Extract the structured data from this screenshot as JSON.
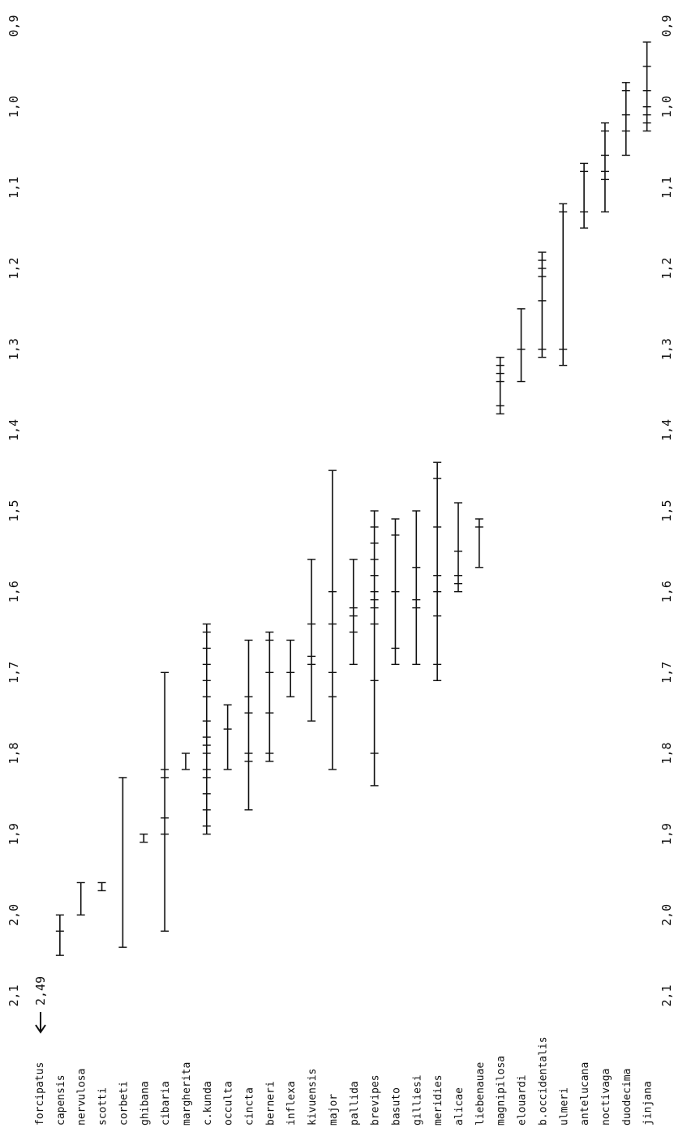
{
  "chart_data": {
    "type": "range",
    "orientation": "rotated",
    "ticks": [
      "0,9",
      "1,0",
      "1,1",
      "1,2",
      "1,3",
      "1,4",
      "1,5",
      "1,6",
      "1,7",
      "1,8",
      "1,9",
      "2,0",
      "2,1"
    ],
    "tick_values": [
      0.9,
      1.0,
      1.1,
      1.2,
      1.3,
      1.4,
      1.5,
      1.6,
      1.7,
      1.8,
      1.9,
      2.0,
      2.1
    ],
    "axis_range": [
      0.88,
      2.12
    ],
    "annotation": {
      "text": "2,49",
      "species": "forcipatus"
    },
    "species": [
      {
        "name": "forcipatus",
        "values": []
      },
      {
        "name": "capensis",
        "values": [
          2.0,
          2.02,
          2.05
        ]
      },
      {
        "name": "nervulosa",
        "values": [
          1.96,
          2.0
        ]
      },
      {
        "name": "scotti",
        "values": [
          1.96,
          1.97
        ]
      },
      {
        "name": "corbeti",
        "values": [
          1.83,
          2.04
        ]
      },
      {
        "name": "ghibana",
        "values": [
          1.9,
          1.91
        ]
      },
      {
        "name": "cibaria",
        "values": [
          1.7,
          1.82,
          1.83,
          1.88,
          1.9,
          2.02
        ]
      },
      {
        "name": "margherita",
        "values": [
          1.8,
          1.82
        ]
      },
      {
        "name": "c.kunda",
        "values": [
          1.64,
          1.65,
          1.67,
          1.69,
          1.71,
          1.73,
          1.76,
          1.78,
          1.79,
          1.8,
          1.82,
          1.83,
          1.85,
          1.87,
          1.89,
          1.9
        ]
      },
      {
        "name": "occulta",
        "values": [
          1.74,
          1.77,
          1.82
        ]
      },
      {
        "name": "cincta",
        "values": [
          1.66,
          1.73,
          1.75,
          1.8,
          1.81,
          1.87
        ]
      },
      {
        "name": "berneri",
        "values": [
          1.65,
          1.66,
          1.7,
          1.75,
          1.8,
          1.81
        ]
      },
      {
        "name": "inflexa",
        "values": [
          1.66,
          1.7,
          1.73
        ]
      },
      {
        "name": "kivuensis",
        "values": [
          1.56,
          1.64,
          1.68,
          1.69,
          1.76
        ]
      },
      {
        "name": "major",
        "values": [
          1.45,
          1.6,
          1.64,
          1.7,
          1.73,
          1.82
        ]
      },
      {
        "name": "pallida",
        "values": [
          1.56,
          1.62,
          1.63,
          1.65,
          1.69
        ]
      },
      {
        "name": "brevipes",
        "values": [
          1.5,
          1.52,
          1.54,
          1.56,
          1.58,
          1.6,
          1.61,
          1.62,
          1.64,
          1.71,
          1.8,
          1.84
        ]
      },
      {
        "name": "basuto",
        "values": [
          1.51,
          1.53,
          1.6,
          1.67,
          1.69
        ]
      },
      {
        "name": "gilliesi",
        "values": [
          1.5,
          1.57,
          1.61,
          1.62,
          1.69
        ]
      },
      {
        "name": "meridies",
        "values": [
          1.44,
          1.46,
          1.52,
          1.58,
          1.6,
          1.63,
          1.69,
          1.71
        ]
      },
      {
        "name": "alicae",
        "values": [
          1.49,
          1.55,
          1.58,
          1.59,
          1.6
        ]
      },
      {
        "name": "liebenauae",
        "values": [
          1.51,
          1.52,
          1.57
        ]
      },
      {
        "name": "magnipilosa",
        "values": [
          1.31,
          1.32,
          1.33,
          1.34,
          1.37,
          1.38
        ]
      },
      {
        "name": "elouardi",
        "values": [
          1.25,
          1.3,
          1.34
        ]
      },
      {
        "name": "b.occidentalis",
        "values": [
          1.18,
          1.19,
          1.2,
          1.21,
          1.24,
          1.3,
          1.31
        ]
      },
      {
        "name": "ulmeri",
        "values": [
          1.12,
          1.13,
          1.3,
          1.32
        ]
      },
      {
        "name": "antelucana",
        "values": [
          1.07,
          1.08,
          1.13,
          1.15
        ]
      },
      {
        "name": "noctivaga",
        "values": [
          1.02,
          1.03,
          1.06,
          1.08,
          1.09,
          1.13
        ]
      },
      {
        "name": "duodecima",
        "values": [
          0.97,
          0.98,
          1.01,
          1.03,
          1.06
        ]
      },
      {
        "name": "jinjana",
        "values": [
          0.92,
          0.95,
          0.98,
          1.0,
          1.01,
          1.02,
          1.03
        ]
      }
    ]
  }
}
